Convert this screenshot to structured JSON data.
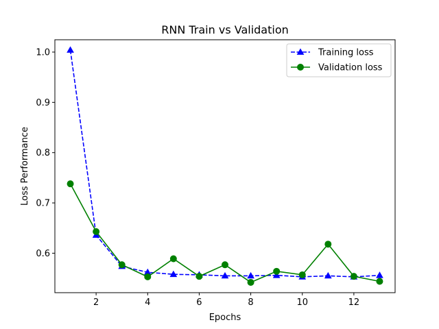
{
  "chart_data": {
    "type": "line",
    "title": "RNN Train vs Validation",
    "xlabel": "Epochs",
    "ylabel": "Loss Performance",
    "xlim": [
      0.4,
      13.6
    ],
    "ylim": [
      0.5215,
      1.0245
    ],
    "xticks": [
      2,
      4,
      6,
      8,
      10,
      12
    ],
    "yticks": [
      0.6,
      0.7,
      0.8,
      0.9,
      1.0
    ],
    "grid": false,
    "legend_position": "top-right",
    "x": [
      1,
      2,
      3,
      4,
      5,
      6,
      7,
      8,
      9,
      10,
      11,
      12,
      13
    ],
    "series": [
      {
        "name": "Training loss",
        "color": "#0000ff",
        "linestyle": "dashed",
        "marker": "triangle",
        "values": [
          1.004,
          0.636,
          0.574,
          0.562,
          0.558,
          0.557,
          0.555,
          0.555,
          0.556,
          0.553,
          0.555,
          0.553,
          0.556
        ]
      },
      {
        "name": "Validation loss",
        "color": "#008000",
        "linestyle": "solid",
        "marker": "circle",
        "values": [
          0.738,
          0.643,
          0.577,
          0.553,
          0.589,
          0.554,
          0.577,
          0.542,
          0.564,
          0.557,
          0.618,
          0.554,
          0.544
        ]
      }
    ]
  }
}
